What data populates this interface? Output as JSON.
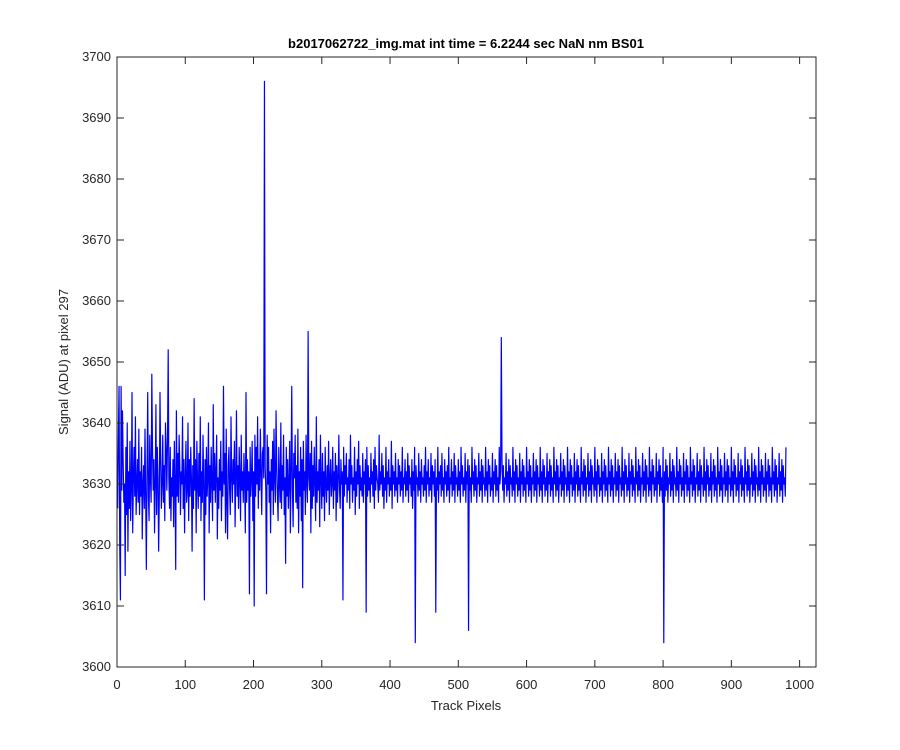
{
  "chart_data": {
    "type": "line",
    "title": "b2017062722_img.mat int time = 6.2244 sec  NaN nm BS01",
    "xlabel": "Track Pixels",
    "ylabel": "Signal (ADU) at pixel 297",
    "xlim": [
      0,
      1024
    ],
    "ylim": [
      3600,
      3700
    ],
    "xticks": [
      0,
      100,
      200,
      300,
      400,
      500,
      600,
      700,
      800,
      900,
      1000
    ],
    "yticks": [
      3600,
      3610,
      3620,
      3630,
      3640,
      3650,
      3660,
      3670,
      3680,
      3690,
      3700
    ],
    "grid": false,
    "legend": "none",
    "series": [
      {
        "color": "#0000ff",
        "x_start": 1,
        "x_step": 1,
        "values": [
          3626,
          3638,
          3646,
          3620,
          3611,
          3646,
          3629,
          3642,
          3634,
          3627,
          3630,
          3615,
          3636,
          3625,
          3640,
          3619,
          3632,
          3626,
          3637,
          3624,
          3629,
          3645,
          3622,
          3631,
          3636,
          3628,
          3641,
          3625,
          3630,
          3634,
          3627,
          3639,
          3625,
          3632,
          3628,
          3636,
          3621,
          3630,
          3633,
          3626,
          3639,
          3628,
          3616,
          3632,
          3645,
          3628,
          3624,
          3638,
          3631,
          3627,
          3648,
          3636,
          3629,
          3634,
          3622,
          3630,
          3643,
          3625,
          3636,
          3631,
          3619,
          3628,
          3645,
          3634,
          3626,
          3630,
          3638,
          3627,
          3633,
          3624,
          3640,
          3636,
          3629,
          3637,
          3652,
          3631,
          3626,
          3636,
          3624,
          3631,
          3628,
          3634,
          3623,
          3637,
          3630,
          3616,
          3642,
          3628,
          3635,
          3627,
          3638,
          3633,
          3625,
          3632,
          3630,
          3641,
          3626,
          3634,
          3622,
          3631,
          3637,
          3627,
          3629,
          3640,
          3624,
          3634,
          3628,
          3636,
          3631,
          3619,
          3633,
          3626,
          3644,
          3629,
          3634,
          3622,
          3637,
          3630,
          3626,
          3635,
          3628,
          3641,
          3624,
          3632,
          3627,
          3638,
          3630,
          3611,
          3634,
          3625,
          3636,
          3628,
          3631,
          3640,
          3622,
          3633,
          3627,
          3636,
          3630,
          3624,
          3643,
          3629,
          3635,
          3627,
          3632,
          3638,
          3621,
          3631,
          3626,
          3634,
          3629,
          3637,
          3624,
          3632,
          3628,
          3646,
          3630,
          3635,
          3622,
          3639,
          3627,
          3621,
          3633,
          3636,
          3629,
          3625,
          3641,
          3631,
          3627,
          3634,
          3630,
          3637,
          3623,
          3631,
          3642,
          3628,
          3633,
          3626,
          3636,
          3631,
          3624,
          3638,
          3629,
          3632,
          3627,
          3635,
          3630,
          3622,
          3645,
          3627,
          3634,
          3629,
          3632,
          3612,
          3636,
          3628,
          3631,
          3637,
          3624,
          3632,
          3610,
          3638,
          3628,
          3636,
          3630,
          3641,
          3626,
          3634,
          3629,
          3639,
          3632,
          3625,
          3635,
          3636,
          3631,
          3696,
          3633,
          3629,
          3612,
          3638,
          3630,
          3636,
          3627,
          3632,
          3622,
          3634,
          3629,
          3637,
          3625,
          3639,
          3631,
          3627,
          3642,
          3633,
          3628,
          3624,
          3636,
          3630,
          3627,
          3640,
          3626,
          3633,
          3629,
          3638,
          3625,
          3631,
          3617,
          3636,
          3628,
          3634,
          3626,
          3630,
          3637,
          3622,
          3632,
          3646,
          3629,
          3623,
          3635,
          3631,
          3638,
          3627,
          3633,
          3626,
          3639,
          3622,
          3632,
          3628,
          3636,
          3624,
          3634,
          3613,
          3637,
          3629,
          3632,
          3625,
          3638,
          3630,
          3627,
          3655,
          3631,
          3629,
          3635,
          3622,
          3637,
          3626,
          3633,
          3628,
          3636,
          3630,
          3624,
          3641,
          3627,
          3632,
          3629,
          3634,
          3623,
          3638,
          3631,
          3626,
          3635,
          3628,
          3632,
          3624,
          3636,
          3630,
          3627,
          3633,
          3629,
          3637,
          3625,
          3631,
          3634,
          3628,
          3630,
          3636,
          3626,
          3632,
          3629,
          3635,
          3624,
          3633,
          3627,
          3631,
          3638,
          3629,
          3626,
          3634,
          3630,
          3632,
          3611,
          3636,
          3628,
          3633,
          3630,
          3635,
          3627,
          3631,
          3629,
          3634,
          3626,
          3638,
          3630,
          3633,
          3627,
          3631,
          3629,
          3636,
          3625,
          3632,
          3628,
          3634,
          3630,
          3637,
          3626,
          3633,
          3629,
          3631,
          3628,
          3635,
          3627,
          3632,
          3630,
          3634,
          3609,
          3636,
          3628,
          3633,
          3629,
          3631,
          3627,
          3635,
          3630,
          3632,
          3628,
          3634,
          3626,
          3636,
          3629,
          3633,
          3631,
          3630,
          3627,
          3638,
          3629,
          3632,
          3630,
          3635,
          3628,
          3633,
          3626,
          3631,
          3629,
          3636,
          3627,
          3632,
          3630,
          3634,
          3628,
          3631,
          3629,
          3637,
          3626,
          3633,
          3630,
          3632,
          3628,
          3635,
          3629,
          3631,
          3627,
          3634,
          3630,
          3633,
          3628,
          3632,
          3629,
          3636,
          3627,
          3631,
          3630,
          3634,
          3628,
          3632,
          3629,
          3635,
          3627,
          3633,
          3630,
          3631,
          3628,
          3634,
          3626,
          3632,
          3629,
          3636,
          3604,
          3633,
          3630,
          3631,
          3628,
          3635,
          3629,
          3632,
          3627,
          3634,
          3630,
          3631,
          3628,
          3633,
          3629,
          3636,
          3627,
          3632,
          3630,
          3634,
          3628,
          3631,
          3629,
          3635,
          3627,
          3633,
          3630,
          3632,
          3628,
          3634,
          3609,
          3631,
          3629,
          3636,
          3627,
          3632,
          3630,
          3633,
          3628,
          3635,
          3629,
          3631,
          3627,
          3634,
          3630,
          3632,
          3628,
          3633,
          3629,
          3636,
          3627,
          3631,
          3630,
          3634,
          3628,
          3632,
          3629,
          3635,
          3627,
          3633,
          3630,
          3631,
          3628,
          3634,
          3629,
          3632,
          3627,
          3636,
          3630,
          3633,
          3628,
          3631,
          3629,
          3635,
          3627,
          3632,
          3630,
          3634,
          3606,
          3633,
          3629,
          3631,
          3627,
          3636,
          3630,
          3632,
          3628,
          3634,
          3629,
          3633,
          3627,
          3631,
          3630,
          3635,
          3628,
          3632,
          3629,
          3634,
          3627,
          3633,
          3630,
          3631,
          3628,
          3636,
          3629,
          3632,
          3627,
          3634,
          3630,
          3633,
          3628,
          3631,
          3629,
          3635,
          3627,
          3632,
          3630,
          3634,
          3628,
          3633,
          3629,
          3631,
          3627,
          3636,
          3630,
          3632,
          3654,
          3634,
          3629,
          3633,
          3627,
          3631,
          3630,
          3635,
          3628,
          3632,
          3629,
          3634,
          3627,
          3633,
          3630,
          3631,
          3628,
          3636,
          3629,
          3632,
          3627,
          3634,
          3630,
          3633,
          3628,
          3631,
          3629,
          3635,
          3627,
          3632,
          3630,
          3634,
          3628,
          3633,
          3629,
          3631,
          3627,
          3636,
          3630,
          3632,
          3628,
          3634,
          3629,
          3633,
          3627,
          3631,
          3630,
          3635,
          3628,
          3632,
          3629,
          3634,
          3627,
          3633,
          3630,
          3631,
          3628,
          3636,
          3629,
          3632,
          3627,
          3634,
          3630,
          3633,
          3628,
          3631,
          3629,
          3635,
          3627,
          3632,
          3630,
          3634,
          3628,
          3633,
          3629,
          3631,
          3627,
          3636,
          3630,
          3632,
          3628,
          3634,
          3629,
          3633,
          3627,
          3631,
          3630,
          3635,
          3628,
          3632,
          3629,
          3634,
          3627,
          3633,
          3630,
          3631,
          3628,
          3636,
          3629,
          3632,
          3627,
          3634,
          3630,
          3633,
          3628,
          3631,
          3629,
          3635,
          3627,
          3632,
          3630,
          3634,
          3628,
          3633,
          3629,
          3631,
          3627,
          3636,
          3630,
          3632,
          3628,
          3634,
          3629,
          3633,
          3627,
          3631,
          3630,
          3635,
          3628,
          3632,
          3629,
          3634,
          3627,
          3633,
          3630,
          3631,
          3628,
          3636,
          3629,
          3632,
          3627,
          3634,
          3630,
          3633,
          3628,
          3631,
          3629,
          3635,
          3627,
          3632,
          3630,
          3634,
          3628,
          3633,
          3629,
          3631,
          3627,
          3636,
          3630,
          3632,
          3628,
          3634,
          3629,
          3633,
          3627,
          3631,
          3630,
          3635,
          3628,
          3632,
          3629,
          3634,
          3627,
          3633,
          3630,
          3631,
          3628,
          3636,
          3629,
          3632,
          3627,
          3634,
          3630,
          3633,
          3628,
          3631,
          3629,
          3635,
          3627,
          3632,
          3630,
          3634,
          3628,
          3633,
          3629,
          3631,
          3627,
          3636,
          3630,
          3632,
          3628,
          3634,
          3629,
          3633,
          3627,
          3631,
          3630,
          3635,
          3628,
          3632,
          3629,
          3634,
          3627,
          3633,
          3630,
          3631,
          3628,
          3636,
          3629,
          3632,
          3627,
          3634,
          3630,
          3633,
          3628,
          3631,
          3629,
          3635,
          3627,
          3632,
          3630,
          3634,
          3628,
          3633,
          3629,
          3631,
          3627,
          3636,
          3604,
          3632,
          3628,
          3634,
          3629,
          3633,
          3627,
          3631,
          3630,
          3635,
          3628,
          3632,
          3629,
          3634,
          3627,
          3633,
          3630,
          3631,
          3628,
          3636,
          3629,
          3632,
          3627,
          3634,
          3630,
          3633,
          3628,
          3631,
          3629,
          3635,
          3627,
          3632,
          3630,
          3634,
          3628,
          3633,
          3629,
          3631,
          3627,
          3636,
          3630,
          3632,
          3628,
          3634,
          3629,
          3633,
          3627,
          3631,
          3630,
          3635,
          3628,
          3632,
          3629,
          3634,
          3627,
          3633,
          3630,
          3631,
          3628,
          3636,
          3629,
          3632,
          3627,
          3634,
          3630,
          3633,
          3628,
          3631,
          3629,
          3635,
          3627,
          3632,
          3630,
          3634,
          3628,
          3633,
          3629,
          3631,
          3627,
          3636,
          3630,
          3632,
          3628,
          3634,
          3629,
          3633,
          3627,
          3631,
          3630,
          3635,
          3628,
          3632,
          3629,
          3634,
          3627,
          3633,
          3630,
          3631,
          3628,
          3636,
          3629,
          3632,
          3627,
          3634,
          3630,
          3633,
          3628,
          3631,
          3629,
          3635,
          3627,
          3632,
          3630,
          3634,
          3628,
          3633,
          3629,
          3631,
          3627,
          3636,
          3630,
          3632,
          3628,
          3634,
          3629,
          3633,
          3627,
          3631,
          3630,
          3635,
          3628,
          3632,
          3629,
          3634,
          3627,
          3633,
          3630,
          3631,
          3628,
          3636,
          3629,
          3632,
          3627,
          3634,
          3630,
          3633,
          3628,
          3631,
          3629,
          3635,
          3627,
          3632,
          3630,
          3634,
          3628,
          3633,
          3629,
          3631,
          3627,
          3636,
          3630,
          3632,
          3628,
          3634,
          3629,
          3633,
          3627,
          3631,
          3630,
          3635,
          3628,
          3632,
          3629,
          3634,
          3627,
          3633,
          3630,
          3631,
          3628,
          3636
        ]
      }
    ]
  }
}
